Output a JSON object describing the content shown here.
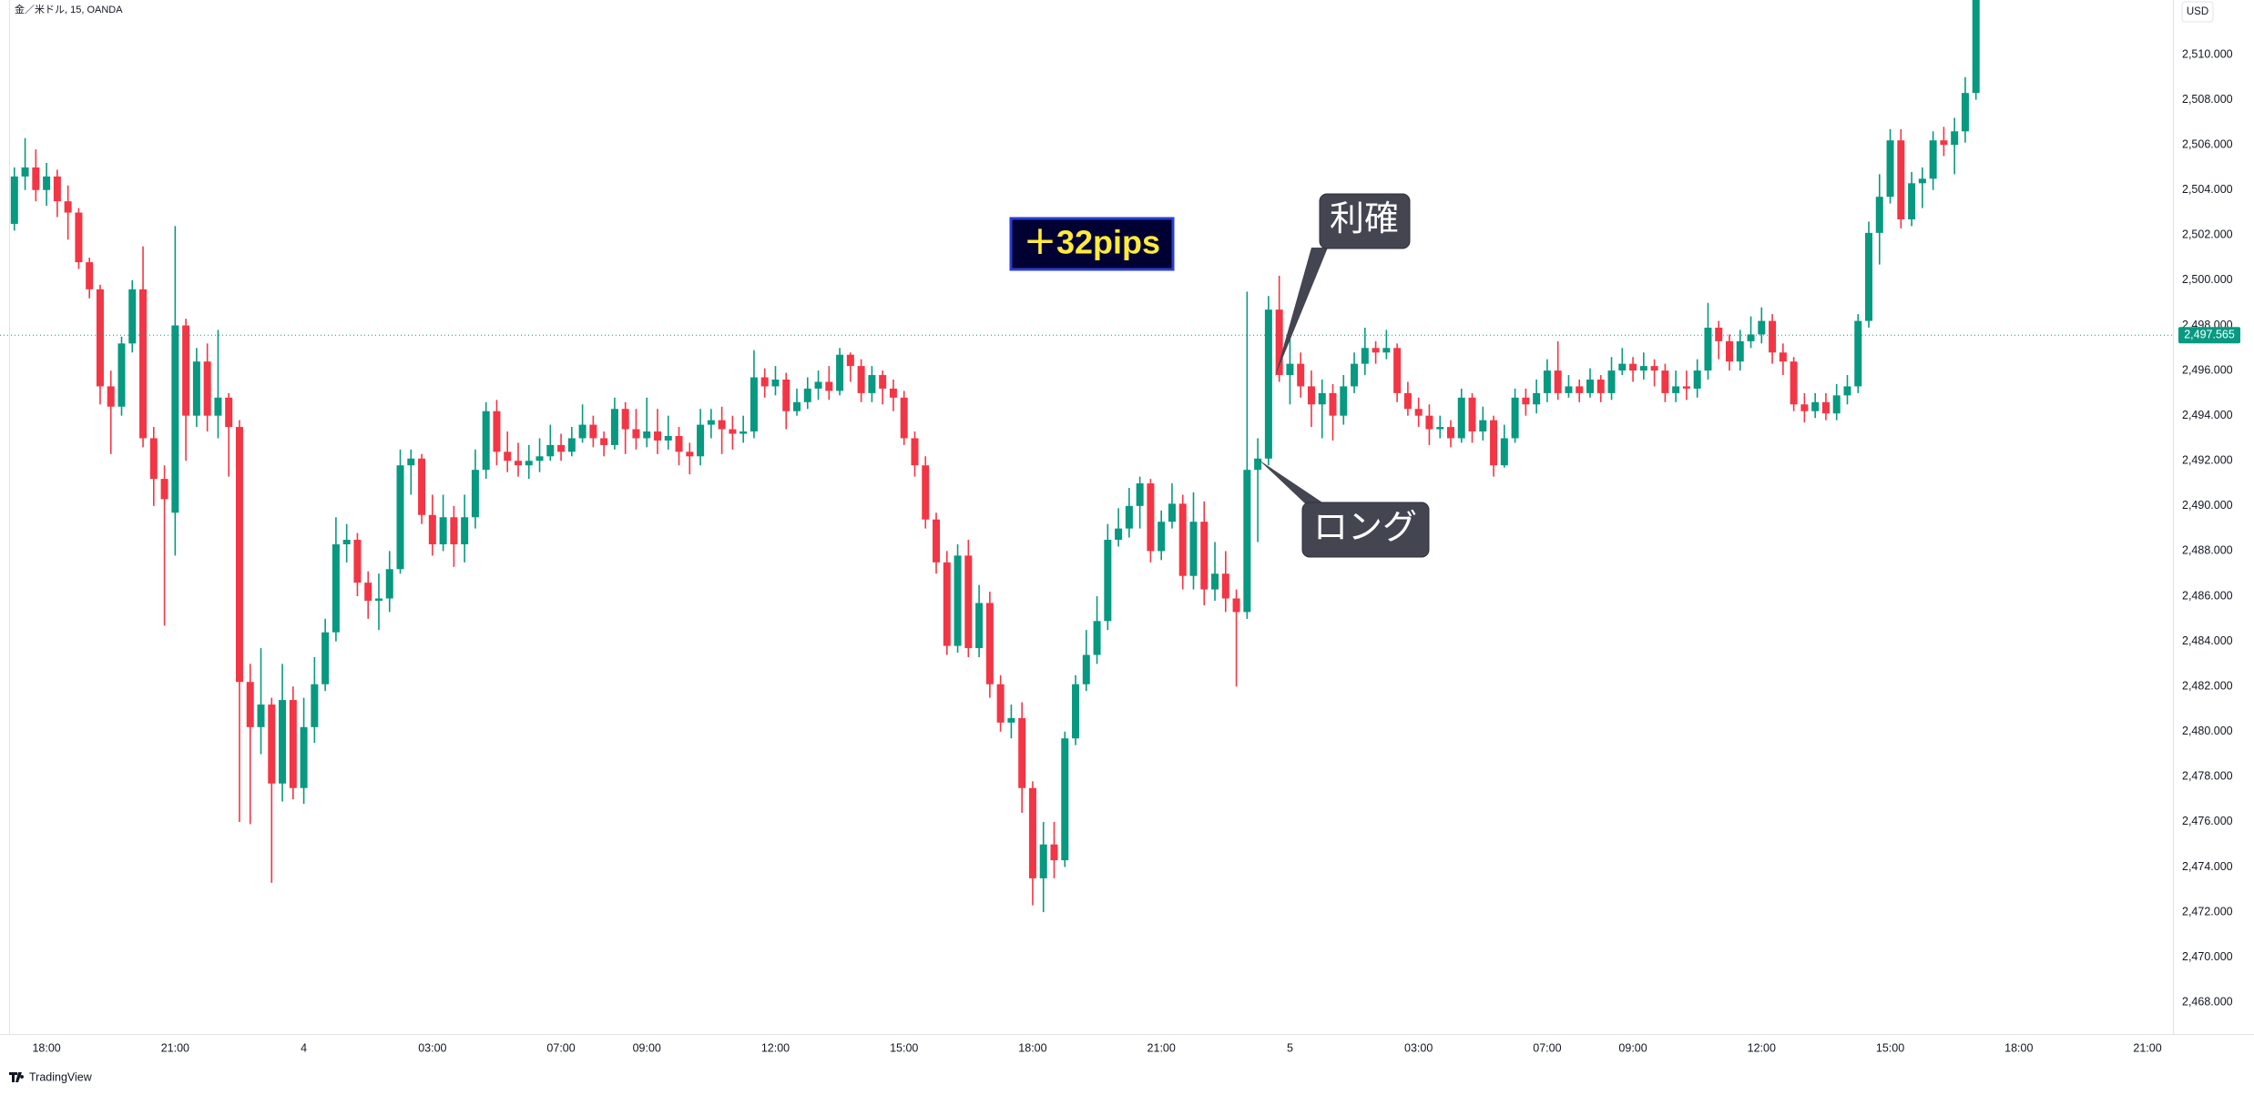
{
  "header": {
    "symbol": "金／米ドル, 15, OANDA",
    "currency": "USD",
    "brand": "TradingView"
  },
  "chart_data": {
    "type": "candlestick",
    "up_color": "#089981",
    "down_color": "#f23645",
    "ylim": [
      2466.6,
      2512.42
    ],
    "yticks": [
      {
        "value": 2468,
        "label": "2,468.000"
      },
      {
        "value": 2470,
        "label": "2,470.000"
      },
      {
        "value": 2472,
        "label": "2,472.000"
      },
      {
        "value": 2474,
        "label": "2,474.000"
      },
      {
        "value": 2476,
        "label": "2,476.000"
      },
      {
        "value": 2478,
        "label": "2,478.000"
      },
      {
        "value": 2480,
        "label": "2,480.000"
      },
      {
        "value": 2482,
        "label": "2,482.000"
      },
      {
        "value": 2484,
        "label": "2,484.000"
      },
      {
        "value": 2486,
        "label": "2,486.000"
      },
      {
        "value": 2488,
        "label": "2,488.000"
      },
      {
        "value": 2490,
        "label": "2,490.000"
      },
      {
        "value": 2492,
        "label": "2,492.000"
      },
      {
        "value": 2494,
        "label": "2,494.000"
      },
      {
        "value": 2496,
        "label": "2,496.000"
      },
      {
        "value": 2498,
        "label": "2,498.000"
      },
      {
        "value": 2500,
        "label": "2,500.000"
      },
      {
        "value": 2502,
        "label": "2,502.000"
      },
      {
        "value": 2504,
        "label": "2,504.000"
      },
      {
        "value": 2506,
        "label": "2,506.000"
      },
      {
        "value": 2508,
        "label": "2,508.000"
      },
      {
        "value": 2510,
        "label": "2,510.000"
      }
    ],
    "grid": false,
    "last_price": {
      "value": 2497.565,
      "label": "2,497.565"
    },
    "annotations": {
      "profit": "＋32pips",
      "take_profit": "利確",
      "long": "ロング"
    },
    "categories": [
      null,
      null,
      null,
      "18:00",
      null,
      null,
      null,
      null,
      null,
      null,
      null,
      null,
      null,
      null,
      null,
      "21:00",
      null,
      null,
      null,
      null,
      null,
      null,
      null,
      null,
      null,
      null,
      null,
      "4",
      null,
      null,
      null,
      null,
      null,
      null,
      null,
      null,
      null,
      null,
      null,
      "03:00",
      null,
      null,
      null,
      null,
      null,
      null,
      null,
      null,
      null,
      null,
      null,
      "07:00",
      null,
      null,
      null,
      null,
      null,
      null,
      null,
      "09:00",
      null,
      null,
      null,
      null,
      null,
      null,
      null,
      null,
      null,
      null,
      null,
      "12:00",
      null,
      null,
      null,
      null,
      null,
      null,
      null,
      null,
      null,
      null,
      null,
      "15:00",
      null,
      null,
      null,
      null,
      null,
      null,
      null,
      null,
      null,
      null,
      null,
      "18:00",
      null,
      null,
      null,
      null,
      null,
      null,
      null,
      null,
      null,
      null,
      null,
      "21:00",
      null,
      null,
      null,
      null,
      null,
      null,
      null,
      null,
      null,
      null,
      null,
      "5",
      null,
      null,
      null,
      null,
      null,
      null,
      null,
      null,
      null,
      null,
      null,
      "03:00",
      null,
      null,
      null,
      null,
      null,
      null,
      null,
      null,
      null,
      null,
      null,
      "07:00",
      null,
      null,
      null,
      null,
      null,
      null,
      null,
      "09:00",
      null,
      null,
      null,
      null,
      null,
      null,
      null,
      null,
      null,
      null,
      null,
      "12:00",
      null,
      null,
      null,
      null,
      null,
      null,
      null,
      null,
      null,
      null,
      null,
      "15:00",
      null,
      null,
      null,
      null,
      null,
      null,
      null,
      null,
      null,
      null,
      null,
      "18:00",
      null,
      null,
      null,
      null,
      null,
      null,
      null,
      null,
      null,
      null,
      null,
      "21:00"
    ],
    "ohlc": [
      [
        2502.5,
        2505,
        2502.2,
        2504.6
      ],
      [
        2504.6,
        2506.3,
        2504,
        2505
      ],
      [
        2505,
        2505.8,
        2503.5,
        2504
      ],
      [
        2504,
        2505.2,
        2503.3,
        2504.6
      ],
      [
        2504.6,
        2504.9,
        2502.8,
        2503.5
      ],
      [
        2503.5,
        2504.2,
        2501.8,
        2503
      ],
      [
        2503,
        2503.2,
        2500.5,
        2500.8
      ],
      [
        2500.8,
        2501,
        2499.2,
        2499.6
      ],
      [
        2499.6,
        2499.8,
        2494.5,
        2495.3
      ],
      [
        2495.3,
        2496,
        2492.3,
        2494.4
      ],
      [
        2494.4,
        2497.5,
        2494,
        2497.2
      ],
      [
        2497.2,
        2500,
        2496.8,
        2499.6
      ],
      [
        2499.6,
        2501.5,
        2492.6,
        2493
      ],
      [
        2493,
        2493.5,
        2490,
        2491.2
      ],
      [
        2491.2,
        2491.8,
        2484.7,
        2490.3
      ],
      [
        2489.7,
        2502.4,
        2487.8,
        2498
      ],
      [
        2498,
        2498.3,
        2492,
        2494
      ],
      [
        2494,
        2497,
        2493.5,
        2496.4
      ],
      [
        2496.4,
        2497.2,
        2493.3,
        2494
      ],
      [
        2494,
        2497.8,
        2493,
        2494.8
      ],
      [
        2494.8,
        2495,
        2491.3,
        2493.5
      ],
      [
        2493.5,
        2493.8,
        2476,
        2482.2
      ],
      [
        2482.2,
        2483,
        2475.9,
        2480.2
      ],
      [
        2480.2,
        2483.7,
        2479,
        2481.2
      ],
      [
        2481.2,
        2481.5,
        2473.3,
        2477.7
      ],
      [
        2477.7,
        2483,
        2476.9,
        2481.4
      ],
      [
        2481.4,
        2482,
        2477,
        2477.5
      ],
      [
        2477.5,
        2481.5,
        2476.8,
        2480.2
      ],
      [
        2480.2,
        2483.3,
        2479.5,
        2482.1
      ],
      [
        2482.1,
        2485,
        2481.8,
        2484.4
      ],
      [
        2484.4,
        2489.5,
        2484,
        2488.3
      ],
      [
        2488.3,
        2489.2,
        2487.5,
        2488.5
      ],
      [
        2488.5,
        2488.8,
        2486,
        2486.6
      ],
      [
        2486.6,
        2487.1,
        2485,
        2485.8
      ],
      [
        2485.8,
        2487,
        2484.5,
        2485.9
      ],
      [
        2485.9,
        2488,
        2485.3,
        2487.2
      ],
      [
        2487.2,
        2492.5,
        2487,
        2491.8
      ],
      [
        2491.8,
        2492.5,
        2490.5,
        2492.1
      ],
      [
        2492.1,
        2492.3,
        2489.2,
        2489.6
      ],
      [
        2489.6,
        2490.5,
        2487.8,
        2488.3
      ],
      [
        2488.3,
        2490.5,
        2488,
        2489.5
      ],
      [
        2489.5,
        2490,
        2487.3,
        2488.3
      ],
      [
        2488.3,
        2490.5,
        2487.5,
        2489.5
      ],
      [
        2489.5,
        2492.5,
        2489,
        2491.6
      ],
      [
        2491.6,
        2494.6,
        2491.2,
        2494.2
      ],
      [
        2494.2,
        2494.7,
        2491.8,
        2492.4
      ],
      [
        2492.4,
        2493.3,
        2491.5,
        2492
      ],
      [
        2492,
        2492.8,
        2491.3,
        2491.8
      ],
      [
        2491.8,
        2492.7,
        2491.2,
        2492
      ],
      [
        2492,
        2493,
        2491.5,
        2492.2
      ],
      [
        2492.2,
        2493.6,
        2492,
        2492.7
      ],
      [
        2492.7,
        2493.2,
        2492,
        2492.4
      ],
      [
        2492.4,
        2493.5,
        2492.2,
        2493
      ],
      [
        2493,
        2494.5,
        2492.8,
        2493.6
      ],
      [
        2493.6,
        2494,
        2492.6,
        2493
      ],
      [
        2493,
        2493.3,
        2492.2,
        2492.7
      ],
      [
        2492.7,
        2494.8,
        2492.5,
        2494.3
      ],
      [
        2494.3,
        2494.6,
        2492.3,
        2493.4
      ],
      [
        2493.4,
        2494.3,
        2492.5,
        2493
      ],
      [
        2493,
        2494.8,
        2492.6,
        2493.3
      ],
      [
        2493.3,
        2494.3,
        2492.3,
        2492.9
      ],
      [
        2492.9,
        2494,
        2492.5,
        2493.1
      ],
      [
        2493.1,
        2493.5,
        2491.8,
        2492.4
      ],
      [
        2492.4,
        2492.8,
        2491.4,
        2492.2
      ],
      [
        2492.2,
        2494.3,
        2491.8,
        2493.6
      ],
      [
        2493.6,
        2494.3,
        2493,
        2493.8
      ],
      [
        2493.8,
        2494.4,
        2492.3,
        2493.4
      ],
      [
        2493.4,
        2494,
        2492.5,
        2493.2
      ],
      [
        2493.2,
        2494,
        2492.8,
        2493.3
      ],
      [
        2493.3,
        2496.9,
        2493,
        2495.7
      ],
      [
        2495.7,
        2496.1,
        2494.8,
        2495.3
      ],
      [
        2495.3,
        2496.2,
        2494.9,
        2495.6
      ],
      [
        2495.6,
        2495.9,
        2493.4,
        2494.2
      ],
      [
        2494.2,
        2495.2,
        2494,
        2494.6
      ],
      [
        2494.6,
        2495.7,
        2494.3,
        2495.2
      ],
      [
        2495.2,
        2496,
        2494.7,
        2495.5
      ],
      [
        2495.5,
        2496.2,
        2494.7,
        2495.1
      ],
      [
        2495.1,
        2497,
        2494.9,
        2496.7
      ],
      [
        2496.7,
        2496.8,
        2495.5,
        2496.2
      ],
      [
        2496.2,
        2496.5,
        2494.6,
        2495
      ],
      [
        2495,
        2496.2,
        2494.6,
        2495.8
      ],
      [
        2495.8,
        2496,
        2494.5,
        2495.2
      ],
      [
        2495.2,
        2495.6,
        2494.2,
        2494.8
      ],
      [
        2494.8,
        2495.1,
        2492.7,
        2493
      ],
      [
        2493,
        2493.3,
        2491.3,
        2491.8
      ],
      [
        2491.8,
        2492.2,
        2489,
        2489.4
      ],
      [
        2489.4,
        2489.7,
        2487,
        2487.5
      ],
      [
        2487.5,
        2488,
        2483.4,
        2483.8
      ],
      [
        2483.8,
        2488.3,
        2483.5,
        2487.8
      ],
      [
        2487.8,
        2488.5,
        2483.3,
        2483.7
      ],
      [
        2483.7,
        2486.5,
        2483.3,
        2485.7
      ],
      [
        2485.7,
        2486.2,
        2481.5,
        2482.1
      ],
      [
        2482.1,
        2482.5,
        2480,
        2480.4
      ],
      [
        2480.4,
        2481.2,
        2479.7,
        2480.6
      ],
      [
        2480.6,
        2481.3,
        2476.4,
        2477.5
      ],
      [
        2477.5,
        2477.8,
        2472.3,
        2473.5
      ],
      [
        2473.5,
        2476,
        2472,
        2475
      ],
      [
        2475,
        2476,
        2473.5,
        2474.3
      ],
      [
        2474.3,
        2480,
        2474,
        2479.7
      ],
      [
        2479.7,
        2482.5,
        2479.4,
        2482.1
      ],
      [
        2482.1,
        2484.5,
        2481.8,
        2483.4
      ],
      [
        2483.4,
        2486,
        2483,
        2484.9
      ],
      [
        2484.9,
        2489.2,
        2484.5,
        2488.5
      ],
      [
        2488.5,
        2489.9,
        2488.2,
        2489
      ],
      [
        2489,
        2490.8,
        2488.6,
        2490
      ],
      [
        2490,
        2491.3,
        2489,
        2491
      ],
      [
        2491,
        2491.2,
        2487.5,
        2488
      ],
      [
        2488,
        2489.8,
        2487.6,
        2489.3
      ],
      [
        2489.3,
        2491,
        2489,
        2490.1
      ],
      [
        2490.1,
        2490.5,
        2486.3,
        2486.9
      ],
      [
        2486.9,
        2490.6,
        2486.3,
        2489.3
      ],
      [
        2489.3,
        2490.2,
        2485.6,
        2486.3
      ],
      [
        2486.3,
        2488.4,
        2485.8,
        2487
      ],
      [
        2487,
        2488,
        2485.3,
        2485.9
      ],
      [
        2485.9,
        2486.3,
        2482,
        2485.3
      ],
      [
        2485.3,
        2499.5,
        2485,
        2491.6
      ],
      [
        2491.6,
        2493,
        2488.4,
        2492.1
      ],
      [
        2492.1,
        2499.3,
        2491.8,
        2498.7
      ],
      [
        2498.7,
        2500.2,
        2495.5,
        2495.8
      ],
      [
        2495.8,
        2497.5,
        2494.5,
        2496.3
      ],
      [
        2496.3,
        2496.8,
        2494.8,
        2495.3
      ],
      [
        2495.3,
        2496,
        2493.5,
        2494.5
      ],
      [
        2494.5,
        2495.6,
        2493,
        2495
      ],
      [
        2495,
        2495.4,
        2492.9,
        2494
      ],
      [
        2494,
        2495.8,
        2493.6,
        2495.3
      ],
      [
        2495.3,
        2496.8,
        2495,
        2496.3
      ],
      [
        2496.3,
        2497.9,
        2495.8,
        2497
      ],
      [
        2497,
        2497.3,
        2496.3,
        2496.8
      ],
      [
        2496.8,
        2497.8,
        2496.5,
        2497
      ],
      [
        2497,
        2497.2,
        2494.6,
        2495
      ],
      [
        2495,
        2495.5,
        2494,
        2494.3
      ],
      [
        2494.3,
        2494.8,
        2493.5,
        2494
      ],
      [
        2494,
        2494.5,
        2492.7,
        2493.4
      ],
      [
        2493.4,
        2494,
        2493,
        2493.5
      ],
      [
        2493.5,
        2493.8,
        2492.6,
        2493
      ],
      [
        2493,
        2495.2,
        2492.8,
        2494.8
      ],
      [
        2494.8,
        2495,
        2492.8,
        2493.3
      ],
      [
        2493.3,
        2494.4,
        2492.9,
        2493.8
      ],
      [
        2493.8,
        2494,
        2491.3,
        2491.8
      ],
      [
        2491.8,
        2493.6,
        2491.7,
        2493
      ],
      [
        2493,
        2495.2,
        2492.8,
        2494.8
      ],
      [
        2494.8,
        2495.2,
        2494,
        2494.5
      ],
      [
        2494.5,
        2495.6,
        2494.1,
        2495
      ],
      [
        2495,
        2496.5,
        2494.6,
        2496
      ],
      [
        2496,
        2497.3,
        2494.7,
        2495
      ],
      [
        2495,
        2495.8,
        2494.8,
        2495.3
      ],
      [
        2495.3,
        2495.6,
        2494.6,
        2495
      ],
      [
        2495,
        2496.1,
        2494.8,
        2495.6
      ],
      [
        2495.6,
        2495.8,
        2494.6,
        2495
      ],
      [
        2495,
        2496.6,
        2494.7,
        2496
      ],
      [
        2496,
        2497,
        2495.8,
        2496.3
      ],
      [
        2496.3,
        2496.6,
        2495.5,
        2496
      ],
      [
        2496,
        2496.8,
        2495.6,
        2496.2
      ],
      [
        2496.2,
        2496.5,
        2495.3,
        2496
      ],
      [
        2496,
        2496.3,
        2494.6,
        2495
      ],
      [
        2495,
        2496,
        2494.6,
        2495.3
      ],
      [
        2495.3,
        2496,
        2494.7,
        2495.2
      ],
      [
        2495.2,
        2496.5,
        2494.8,
        2496
      ],
      [
        2496,
        2499,
        2495.6,
        2497.9
      ],
      [
        2497.9,
        2498.2,
        2496.5,
        2497.3
      ],
      [
        2497.3,
        2497.6,
        2496,
        2496.4
      ],
      [
        2496.4,
        2497.8,
        2496,
        2497.3
      ],
      [
        2497.3,
        2498.4,
        2497,
        2497.6
      ],
      [
        2497.6,
        2498.8,
        2497.2,
        2498.2
      ],
      [
        2498.2,
        2498.5,
        2496.3,
        2496.8
      ],
      [
        2496.8,
        2497.2,
        2495.8,
        2496.4
      ],
      [
        2496.4,
        2496.6,
        2494.2,
        2494.5
      ],
      [
        2494.5,
        2495,
        2493.7,
        2494.2
      ],
      [
        2494.2,
        2495,
        2493.9,
        2494.6
      ],
      [
        2494.6,
        2495,
        2493.8,
        2494.1
      ],
      [
        2494.1,
        2495.4,
        2493.8,
        2494.9
      ],
      [
        2494.9,
        2495.8,
        2494.5,
        2495.3
      ],
      [
        2495.3,
        2498.5,
        2495,
        2498.2
      ],
      [
        2498.2,
        2502.6,
        2497.9,
        2502.1
      ],
      [
        2502.1,
        2504.7,
        2500.7,
        2503.7
      ],
      [
        2503.7,
        2506.7,
        2503.4,
        2506.2
      ],
      [
        2506.2,
        2506.7,
        2502.3,
        2502.7
      ],
      [
        2502.7,
        2504.8,
        2502.4,
        2504.3
      ],
      [
        2504.3,
        2505,
        2503.2,
        2504.5
      ],
      [
        2504.5,
        2506.6,
        2504,
        2506.2
      ],
      [
        2506.2,
        2506.8,
        2505.5,
        2506
      ],
      [
        2506,
        2507.2,
        2504.7,
        2506.6
      ],
      [
        2506.6,
        2509,
        2506.1,
        2508.3
      ],
      [
        2508.3,
        2515,
        2508,
        2514
      ],
      null,
      null,
      null,
      null,
      null,
      null,
      null,
      null,
      null,
      null,
      null,
      null,
      null,
      null,
      null,
      null
    ]
  }
}
